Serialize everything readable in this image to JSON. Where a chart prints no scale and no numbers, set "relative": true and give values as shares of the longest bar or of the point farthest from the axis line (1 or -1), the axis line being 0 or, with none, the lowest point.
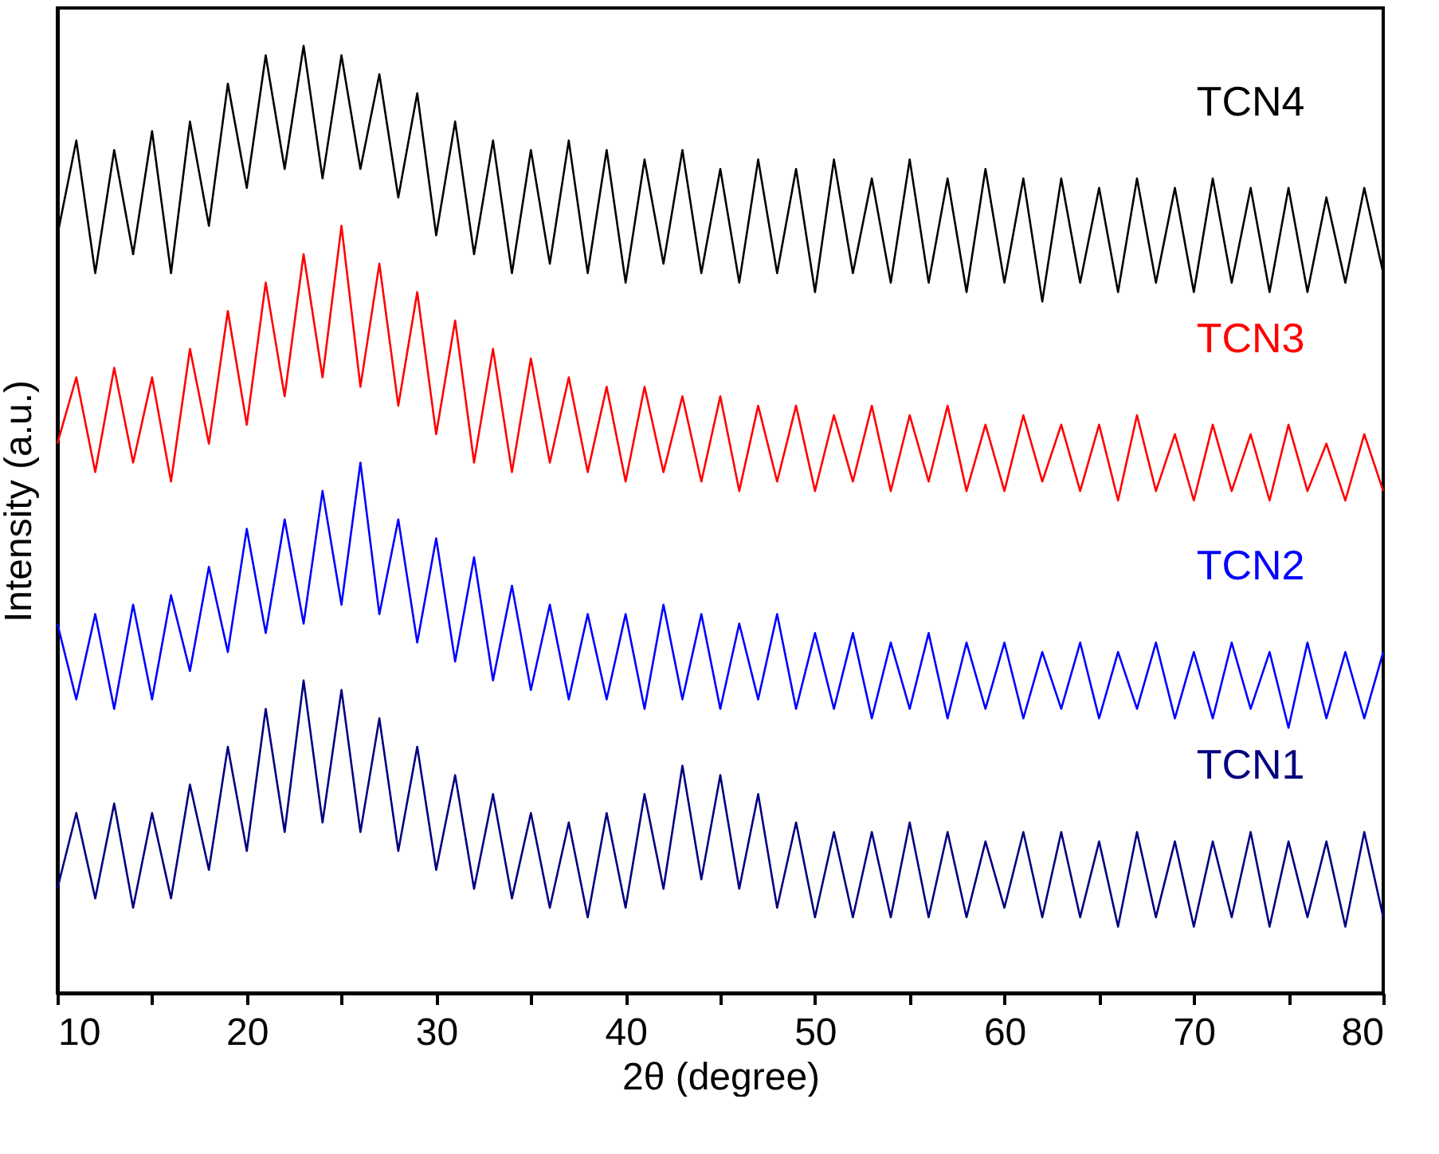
{
  "chart_data": {
    "type": "line",
    "xlabel": "2θ (degree)",
    "ylabel": "Intensity (a.u.)",
    "relative": true,
    "tick_labels": "x",
    "grid": false,
    "legend": false,
    "marker": "none",
    "line_style": "solid",
    "xlim": [
      10,
      80
    ],
    "xticks": [
      10,
      {
        "value": 15,
        "label": null
      },
      20,
      {
        "value": 25,
        "label": null
      },
      30,
      {
        "value": 35,
        "label": null
      },
      40,
      {
        "value": 45,
        "label": null
      },
      50,
      {
        "value": 55,
        "label": null
      },
      60,
      {
        "value": 65,
        "label": null
      },
      70,
      {
        "value": 75,
        "label": null
      },
      80
    ],
    "x": [
      10,
      11,
      12,
      13,
      14,
      15,
      16,
      17,
      18,
      19,
      20,
      21,
      22,
      23,
      24,
      25,
      26,
      27,
      28,
      29,
      30,
      31,
      32,
      33,
      34,
      35,
      36,
      37,
      38,
      39,
      40,
      41,
      42,
      43,
      44,
      45,
      46,
      47,
      48,
      49,
      50,
      51,
      52,
      53,
      54,
      55,
      56,
      57,
      58,
      59,
      60,
      61,
      62,
      63,
      64,
      65,
      66,
      67,
      68,
      69,
      70,
      71,
      72,
      73,
      74,
      75,
      76,
      77,
      78,
      79,
      80
    ],
    "series": [
      {
        "name": "TCN4",
        "color": "#000000",
        "values": [
          0.8,
          0.9,
          0.76,
          0.89,
          0.78,
          0.91,
          0.76,
          0.92,
          0.81,
          0.96,
          0.85,
          0.99,
          0.87,
          1.0,
          0.86,
          0.99,
          0.87,
          0.97,
          0.84,
          0.95,
          0.8,
          0.92,
          0.78,
          0.9,
          0.76,
          0.89,
          0.77,
          0.9,
          0.76,
          0.89,
          0.75,
          0.88,
          0.77,
          0.89,
          0.76,
          0.87,
          0.75,
          0.88,
          0.76,
          0.87,
          0.74,
          0.88,
          0.76,
          0.86,
          0.75,
          0.88,
          0.75,
          0.86,
          0.74,
          0.87,
          0.75,
          0.86,
          0.73,
          0.86,
          0.75,
          0.85,
          0.74,
          0.86,
          0.75,
          0.85,
          0.74,
          0.86,
          0.75,
          0.85,
          0.74,
          0.85,
          0.74,
          0.84,
          0.75,
          0.85,
          0.76
        ]
      },
      {
        "name": "TCN3",
        "color": "#ff0000",
        "values": [
          0.58,
          0.65,
          0.55,
          0.66,
          0.56,
          0.65,
          0.54,
          0.68,
          0.58,
          0.72,
          0.6,
          0.75,
          0.63,
          0.78,
          0.65,
          0.81,
          0.64,
          0.77,
          0.62,
          0.74,
          0.59,
          0.71,
          0.56,
          0.68,
          0.55,
          0.67,
          0.56,
          0.65,
          0.55,
          0.64,
          0.54,
          0.64,
          0.55,
          0.63,
          0.54,
          0.63,
          0.53,
          0.62,
          0.54,
          0.62,
          0.53,
          0.61,
          0.54,
          0.62,
          0.53,
          0.61,
          0.54,
          0.62,
          0.53,
          0.6,
          0.53,
          0.61,
          0.54,
          0.6,
          0.53,
          0.6,
          0.52,
          0.61,
          0.53,
          0.59,
          0.52,
          0.6,
          0.53,
          0.59,
          0.52,
          0.6,
          0.53,
          0.58,
          0.52,
          0.59,
          0.53
        ]
      },
      {
        "name": "TCN2",
        "color": "#0000ff",
        "values": [
          0.39,
          0.31,
          0.4,
          0.3,
          0.41,
          0.31,
          0.42,
          0.34,
          0.45,
          0.36,
          0.49,
          0.38,
          0.5,
          0.39,
          0.53,
          0.41,
          0.56,
          0.4,
          0.5,
          0.37,
          0.48,
          0.35,
          0.46,
          0.33,
          0.43,
          0.32,
          0.41,
          0.31,
          0.4,
          0.31,
          0.4,
          0.3,
          0.41,
          0.31,
          0.4,
          0.3,
          0.39,
          0.31,
          0.4,
          0.3,
          0.38,
          0.3,
          0.38,
          0.29,
          0.37,
          0.3,
          0.38,
          0.29,
          0.37,
          0.3,
          0.37,
          0.29,
          0.36,
          0.3,
          0.37,
          0.29,
          0.36,
          0.3,
          0.37,
          0.29,
          0.36,
          0.29,
          0.37,
          0.3,
          0.36,
          0.28,
          0.37,
          0.29,
          0.36,
          0.29,
          0.36
        ]
      },
      {
        "name": "TCN1",
        "color": "#000080",
        "values": [
          0.11,
          0.19,
          0.1,
          0.2,
          0.09,
          0.19,
          0.1,
          0.22,
          0.13,
          0.26,
          0.15,
          0.3,
          0.17,
          0.33,
          0.18,
          0.32,
          0.17,
          0.29,
          0.15,
          0.26,
          0.13,
          0.23,
          0.11,
          0.21,
          0.1,
          0.19,
          0.09,
          0.18,
          0.08,
          0.19,
          0.09,
          0.21,
          0.11,
          0.24,
          0.12,
          0.23,
          0.11,
          0.21,
          0.09,
          0.18,
          0.08,
          0.17,
          0.08,
          0.17,
          0.08,
          0.18,
          0.08,
          0.17,
          0.08,
          0.16,
          0.09,
          0.17,
          0.08,
          0.17,
          0.08,
          0.16,
          0.07,
          0.17,
          0.08,
          0.16,
          0.07,
          0.16,
          0.08,
          0.17,
          0.07,
          0.16,
          0.08,
          0.16,
          0.07,
          0.17,
          0.08
        ]
      }
    ]
  }
}
